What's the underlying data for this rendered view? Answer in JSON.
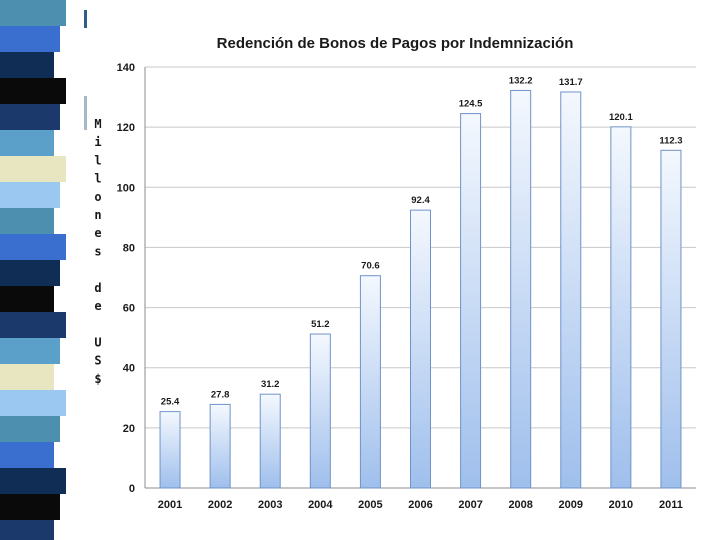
{
  "decor": {
    "stripe_colors": [
      "#4d8fae",
      "#0a0a0a",
      "#e8e6c0",
      "#3a6fd0",
      "#1b3a6b",
      "#9ac8f0",
      "#0f2d55",
      "#5aa0c8"
    ]
  },
  "chart_data": {
    "type": "bar",
    "title": "Redención de Bonos de Pagos por Indemnización",
    "ylabel": "Millones de US$",
    "ylabel_chars": [
      "M",
      "i",
      "l",
      "l",
      "o",
      "n",
      "e",
      "s",
      "",
      "d",
      "e",
      "",
      "U",
      "S",
      "$"
    ],
    "xlabel": "",
    "categories": [
      "2001",
      "2002",
      "2003",
      "2004",
      "2005",
      "2006",
      "2007",
      "2008",
      "2009",
      "2010",
      "2011"
    ],
    "values": [
      25.4,
      27.8,
      31.2,
      51.2,
      70.6,
      92.4,
      124.5,
      132.2,
      131.7,
      120.1,
      112.3
    ],
    "data_labels": [
      "25.4",
      "27.8",
      "31.2",
      "51.2",
      "70.6",
      "92.4",
      "124.5",
      "132.2",
      "131.7",
      "120.1",
      "112.3"
    ],
    "ylim": [
      0,
      140
    ],
    "yticks": [
      0,
      20,
      40,
      60,
      80,
      100,
      120,
      140
    ],
    "ytick_labels": [
      "0",
      "20",
      "40",
      "60",
      "80",
      "100",
      "120",
      "140"
    ],
    "grid": true,
    "legend": "none",
    "colors": {
      "bar_top": "#f4f8fe",
      "bar_bottom": "#9fbfec",
      "bar_stroke": "#6f93c8",
      "grid": "#c8c8c8",
      "axis": "#8c8c8c"
    }
  }
}
